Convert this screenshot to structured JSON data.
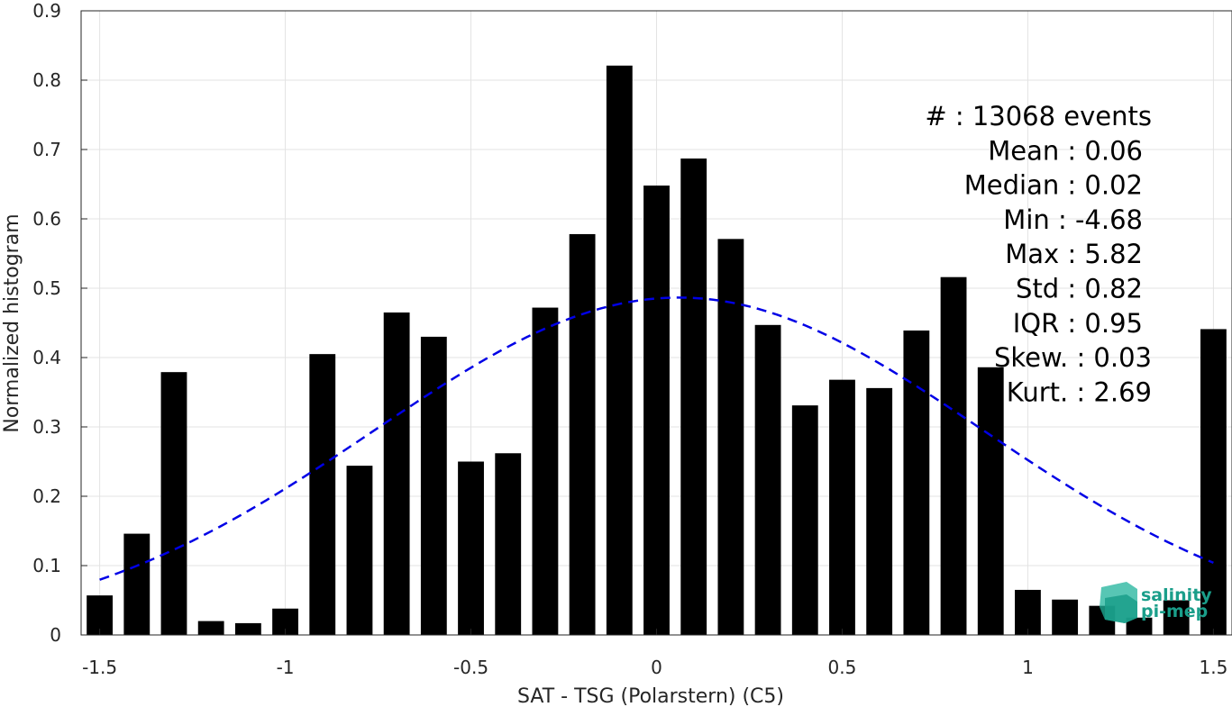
{
  "chart_data": {
    "type": "bar",
    "xlabel": "SAT - TSG (Polarstern) (C5)",
    "ylabel": "Normalized histogram",
    "xlim": [
      -1.55,
      1.55
    ],
    "ylim": [
      0,
      0.9
    ],
    "xticks": [
      -1.5,
      -1,
      -0.5,
      0,
      0.5,
      1,
      1.5
    ],
    "xtick_labels": [
      "-1.5",
      "-1",
      "-0.5",
      "0",
      "0.5",
      "1",
      "1.5"
    ],
    "yticks": [
      0,
      0.1,
      0.2,
      0.3,
      0.4,
      0.5,
      0.6,
      0.7,
      0.8,
      0.9
    ],
    "ytick_labels": [
      "0",
      "0.1",
      "0.2",
      "0.3",
      "0.4",
      "0.5",
      "0.6",
      "0.7",
      "0.8",
      "0.9"
    ],
    "grid": true,
    "bar_color": "#000000",
    "bins": [
      -1.5,
      -1.4,
      -1.3,
      -1.2,
      -1.1,
      -1.0,
      -0.9,
      -0.8,
      -0.7,
      -0.6,
      -0.5,
      -0.4,
      -0.3,
      -0.2,
      -0.1,
      0.0,
      0.1,
      0.2,
      0.3,
      0.4,
      0.5,
      0.6,
      0.7,
      0.8,
      0.9,
      1.0,
      1.1,
      1.2,
      1.3,
      1.4,
      1.5
    ],
    "values": [
      0.057,
      0.146,
      0.379,
      0.02,
      0.017,
      0.038,
      0.405,
      0.244,
      0.465,
      0.43,
      0.25,
      0.262,
      0.472,
      0.578,
      0.821,
      0.648,
      0.687,
      0.571,
      0.447,
      0.331,
      0.368,
      0.356,
      0.439,
      0.516,
      0.386,
      0.065,
      0.051,
      0.042,
      0.025,
      0.05,
      0.441
    ],
    "fit_curve": {
      "style": "dashed",
      "color": "#0000e6",
      "mean": 0.06,
      "std": 0.82,
      "x_range": [
        -1.5,
        1.5
      ]
    },
    "stats": [
      "#  : 13068 events",
      "Mean : 0.06",
      "Median : 0.02",
      "Min : -4.68",
      "Max : 5.82",
      "Std : 0.82",
      "IQR : 0.95",
      "Skew. : 0.03",
      "Kurt. : 2.69"
    ]
  },
  "logo": {
    "line1": "salinity",
    "line2": "pi-mep",
    "color": "#1a9e8a"
  }
}
